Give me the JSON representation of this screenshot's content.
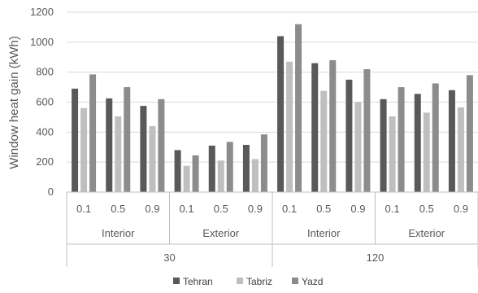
{
  "chart_data": {
    "type": "bar",
    "title": "",
    "ylabel": "Window heat gain (kWh)",
    "ylim": [
      0,
      1200
    ],
    "yticks": [
      0,
      200,
      400,
      600,
      800,
      1000,
      1200
    ],
    "grid": true,
    "legend_position": "bottom",
    "categories": [
      "0.1",
      "0.5",
      "0.9",
      "0.1",
      "0.5",
      "0.9",
      "0.1",
      "0.5",
      "0.9",
      "0.1",
      "0.5",
      "0.9"
    ],
    "groups_level2": [
      {
        "label": "Interior",
        "span": 3
      },
      {
        "label": "Exterior",
        "span": 3
      },
      {
        "label": "Interior",
        "span": 3
      },
      {
        "label": "Exterior",
        "span": 3
      }
    ],
    "groups_level1": [
      {
        "label": "30",
        "span": 6
      },
      {
        "label": "120",
        "span": 6
      }
    ],
    "series": [
      {
        "name": "Tehran",
        "color": "#595959",
        "values": [
          690,
          625,
          575,
          280,
          310,
          315,
          1040,
          860,
          750,
          620,
          655,
          680
        ]
      },
      {
        "name": "Tabriz",
        "color": "#bfbfbf",
        "values": [
          560,
          505,
          440,
          175,
          210,
          220,
          870,
          675,
          600,
          505,
          530,
          565
        ]
      },
      {
        "name": "Yazd",
        "color": "#8c8c8c",
        "values": [
          785,
          700,
          620,
          245,
          335,
          385,
          1120,
          880,
          820,
          700,
          725,
          780
        ]
      }
    ]
  }
}
